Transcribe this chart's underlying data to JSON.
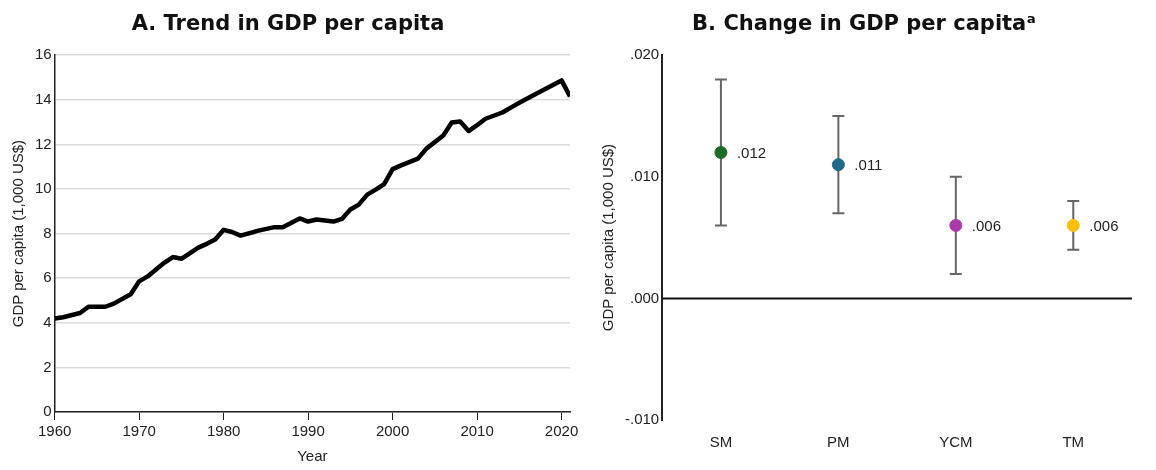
{
  "chart_data": [
    {
      "type": "line",
      "title": "A. Trend in GDP per capita",
      "xlabel": "Year",
      "ylabel": "GDP per capita (1,000 US$)",
      "x": [
        1960,
        1961,
        1963,
        1964,
        1966,
        1967,
        1969,
        1970,
        1971,
        1973,
        1974,
        1975,
        1977,
        1978,
        1979,
        1980,
        1981,
        1982,
        1984,
        1986,
        1987,
        1989,
        1990,
        1991,
        1993,
        1994,
        1995,
        1996,
        1997,
        1998,
        1999,
        2000,
        2001,
        2003,
        2004,
        2006,
        2007,
        2008,
        2009,
        2010,
        2011,
        2013,
        2015,
        2017,
        2020,
        2021
      ],
      "series": [
        {
          "color": "#000000",
          "values": [
            4.19,
            4.25,
            4.44,
            4.72,
            4.72,
            4.86,
            5.28,
            5.86,
            6.08,
            6.7,
            6.95,
            6.87,
            7.37,
            7.54,
            7.74,
            8.17,
            8.07,
            7.91,
            8.12,
            8.29,
            8.29,
            8.68,
            8.54,
            8.63,
            8.54,
            8.66,
            9.08,
            9.3,
            9.75,
            9.97,
            10.22,
            10.89,
            11.06,
            11.36,
            11.81,
            12.4,
            12.98,
            13.03,
            12.6,
            12.86,
            13.15,
            13.43,
            13.87,
            14.27,
            14.87,
            14.15
          ]
        }
      ],
      "xlim": [
        1960,
        2021
      ],
      "xticks": [
        1960,
        1970,
        1980,
        1990,
        2000,
        2010,
        2020
      ],
      "ylim": [
        0,
        16
      ],
      "yticks": [
        0,
        2,
        4,
        6,
        8,
        10,
        12,
        14,
        16
      ],
      "grid": "y",
      "marker": "none",
      "line_style": "solid"
    },
    {
      "type": "scatter",
      "title": "B. Change in GDP per capitaᵃ",
      "ylabel": "GDP per capita (1,000 US$)",
      "categories": [
        "SM",
        "PM",
        "YCM",
        "TM"
      ],
      "values": [
        0.012,
        0.011,
        0.006,
        0.006
      ],
      "colors": [
        "#1e6b2a",
        "#1f6a8a",
        "#a83ca8",
        "#ffc000"
      ],
      "errors": [
        [
          0.006,
          0.018
        ],
        [
          0.007,
          0.015
        ],
        [
          0.002,
          0.01
        ],
        [
          0.004,
          0.008
        ]
      ],
      "value_labels": [
        ".012",
        ".011",
        ".006",
        ".006"
      ],
      "ylim": [
        -0.01,
        0.02
      ],
      "yticks": [
        {
          "value": -0.01,
          "label": "-.010"
        },
        {
          "value": 0,
          "label": ".000"
        },
        {
          "value": 0.01,
          "label": ".010"
        },
        {
          "value": 0.02,
          "label": ".020"
        }
      ],
      "ref_lines": [
        {
          "axis": "y",
          "value": 0,
          "color": "#111111"
        }
      ],
      "grid": false,
      "marker": "circle"
    }
  ]
}
